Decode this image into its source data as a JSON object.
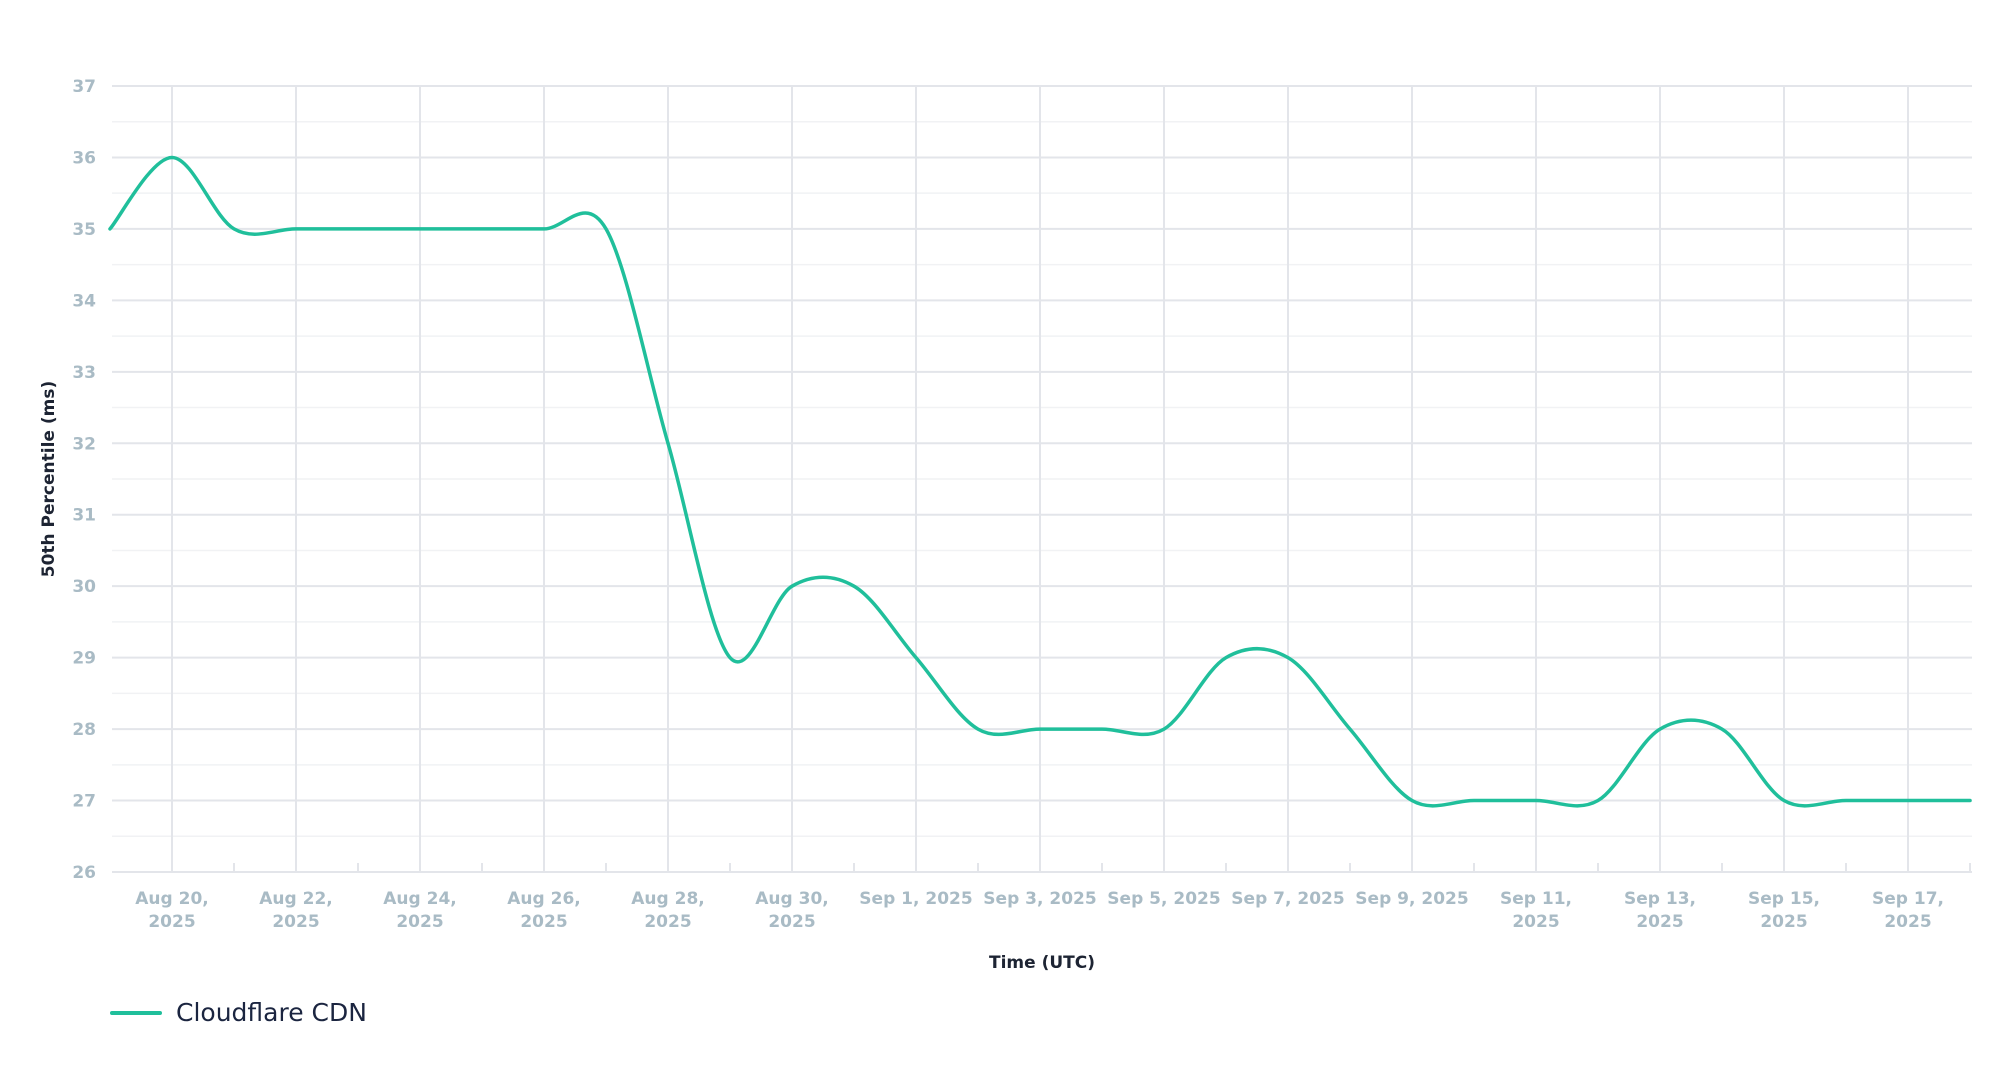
{
  "chart_data": {
    "type": "line",
    "title": "",
    "xlabel": "Time (UTC)",
    "ylabel": "50th Percentile (ms)",
    "ylim": [
      26,
      37
    ],
    "yticks": [
      26,
      27,
      28,
      29,
      30,
      31,
      32,
      33,
      34,
      35,
      36,
      37
    ],
    "xtick_labels": [
      [
        "Aug 20,",
        "2025"
      ],
      [
        "Aug 22,",
        "2025"
      ],
      [
        "Aug 24,",
        "2025"
      ],
      [
        "Aug 26,",
        "2025"
      ],
      [
        "Aug 28,",
        "2025"
      ],
      [
        "Aug 30,",
        "2025"
      ],
      [
        "Sep 1, 2025",
        ""
      ],
      [
        "Sep 3, 2025",
        ""
      ],
      [
        "Sep 5, 2025",
        ""
      ],
      [
        "Sep 7, 2025",
        ""
      ],
      [
        "Sep 9, 2025",
        ""
      ],
      [
        "Sep 11,",
        "2025"
      ],
      [
        "Sep 13,",
        "2025"
      ],
      [
        "Sep 15,",
        "2025"
      ],
      [
        "Sep 17,",
        "2025"
      ]
    ],
    "x": [
      "Aug 19",
      "Aug 20",
      "Aug 21",
      "Aug 22",
      "Aug 23",
      "Aug 24",
      "Aug 25",
      "Aug 26",
      "Aug 27",
      "Aug 28",
      "Aug 29",
      "Aug 30",
      "Aug 31",
      "Sep 1",
      "Sep 2",
      "Sep 3",
      "Sep 4",
      "Sep 5",
      "Sep 6",
      "Sep 7",
      "Sep 8",
      "Sep 9",
      "Sep 10",
      "Sep 11",
      "Sep 12",
      "Sep 13",
      "Sep 14",
      "Sep 15",
      "Sep 16",
      "Sep 17",
      "Sep 18"
    ],
    "series": [
      {
        "name": "Cloudflare CDN",
        "color": "#20bf9b",
        "values": [
          35,
          36,
          35,
          35,
          35,
          35,
          35,
          35,
          35,
          32,
          29,
          30,
          30,
          29,
          28,
          28,
          28,
          28,
          29,
          29,
          28,
          27,
          27,
          27,
          27,
          28,
          28,
          27,
          27,
          27,
          27
        ]
      }
    ],
    "grid": true,
    "legend_position": "bottom-left"
  }
}
